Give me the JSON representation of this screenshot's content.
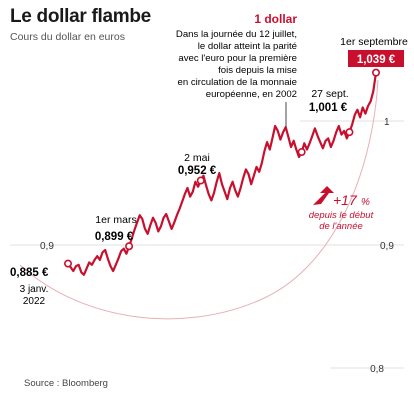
{
  "header": {
    "title": "Le dollar flambe",
    "subtitle": "Cours du dollar en euros",
    "source": "Source : Bloomberg"
  },
  "colors": {
    "accent": "#c8102e",
    "line": "#c8102e",
    "grid": "#d6d6d6",
    "text": "#1a1a1a"
  },
  "annotations": {
    "start_value": "0,885 €",
    "start_date": [
      "3 janv.",
      "2022"
    ],
    "mar_date": "1er mars",
    "mar_value": "0,899 €",
    "may_date": "2 mai",
    "may_value": "0,952 €",
    "parity_title": "1 dollar",
    "parity_text": [
      "Dans la journée du 12 juillet,",
      "le dollar atteint la parité",
      "avec l'euro pour la première",
      "fois depuis la mise",
      "en circulation de la monnaie",
      "européenne, en 2002"
    ],
    "sep27_date": "27 sept.",
    "sep27_value": "1,001 €",
    "sep1_date": "1er septembre",
    "sep1_value": "1,039 €",
    "change_value": "+17",
    "change_unit": "%",
    "change_label": [
      "depuis le début",
      "de l'année"
    ]
  },
  "chart_data": {
    "type": "line",
    "title": "Le dollar flambe",
    "subtitle": "Cours du dollar en euros",
    "ylim": [
      0.8,
      1.05
    ],
    "yticks": [
      0.8,
      0.9,
      1
    ],
    "ytick_labels": [
      "0,8",
      "0,9",
      "1"
    ],
    "grid": true,
    "series": [
      {
        "values": [
          0.885,
          0.882,
          0.879,
          0.883,
          0.884,
          0.878,
          0.876,
          0.881,
          0.886,
          0.884,
          0.888,
          0.891,
          0.888,
          0.894,
          0.896,
          0.889,
          0.883,
          0.879,
          0.884,
          0.889,
          0.895,
          0.897,
          0.893,
          0.899,
          0.905,
          0.912,
          0.918,
          0.924,
          0.921,
          0.913,
          0.909,
          0.916,
          0.922,
          0.918,
          0.911,
          0.915,
          0.922,
          0.925,
          0.919,
          0.913,
          0.918,
          0.924,
          0.929,
          0.935,
          0.941,
          0.946,
          0.939,
          0.943,
          0.951,
          0.947,
          0.952,
          0.956,
          0.948,
          0.941,
          0.936,
          0.942,
          0.951,
          0.958,
          0.949,
          0.943,
          0.937,
          0.946,
          0.951,
          0.944,
          0.939,
          0.946,
          0.954,
          0.961,
          0.957,
          0.949,
          0.956,
          0.963,
          0.959,
          0.966,
          0.976,
          0.983,
          0.977,
          0.986,
          0.996,
          0.992,
          0.985,
          0.991,
          0.995,
          0.987,
          0.979,
          0.984,
          0.977,
          0.971,
          0.975,
          0.982,
          0.977,
          0.982,
          0.988,
          0.994,
          0.988,
          0.983,
          0.978,
          0.984,
          0.986,
          0.979,
          0.984,
          0.991,
          0.996,
          0.989,
          0.992,
          0.986,
          0.991,
          0.997,
          1.005,
          1.009,
          1.003,
          1.011,
          1.006,
          1.012,
          1.016,
          1.024,
          1.039
        ]
      }
    ]
  }
}
